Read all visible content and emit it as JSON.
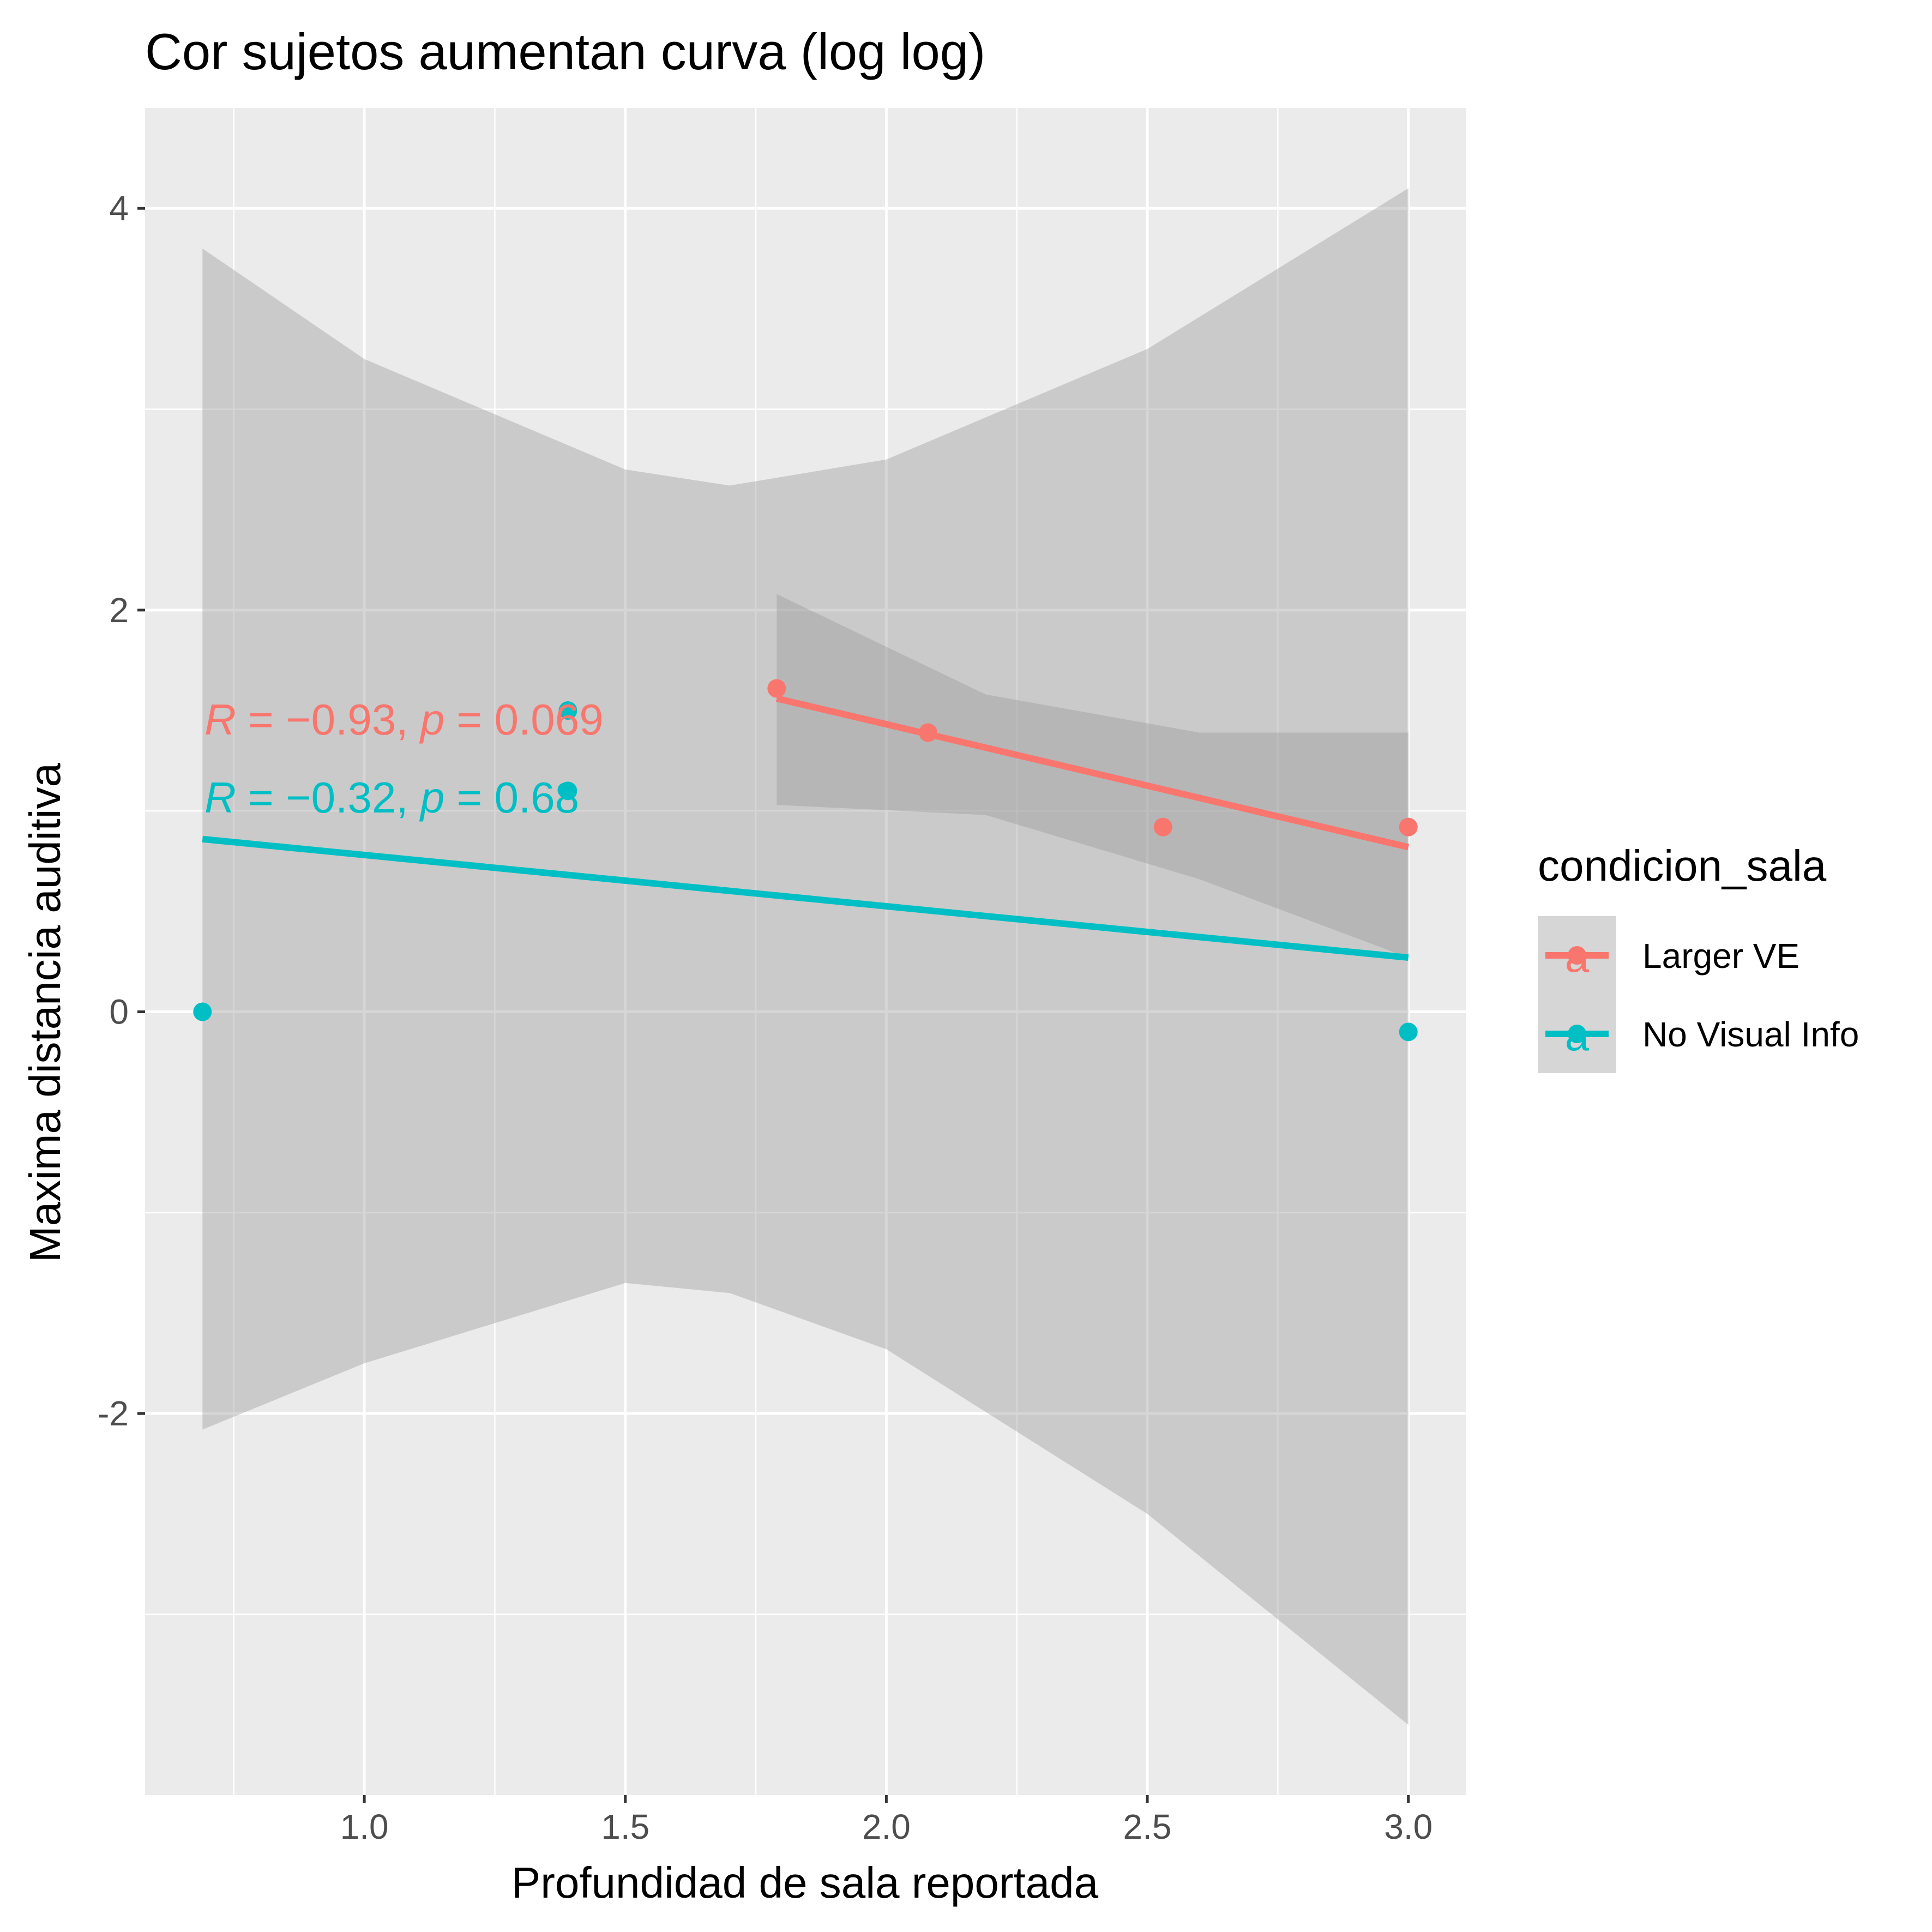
{
  "chart_data": {
    "type": "scatter",
    "title": "Cor sujetos aumentan curva (log log)",
    "xlabel": "Profundidad de sala reportada",
    "ylabel": "Maxima distancia auditiva",
    "xlim": [
      0.58,
      3.11
    ],
    "ylim": [
      -3.9,
      4.5
    ],
    "x_ticks": [
      1.0,
      1.5,
      2.0,
      2.5,
      3.0
    ],
    "x_tick_labels": [
      "1.0",
      "1.5",
      "2.0",
      "2.5",
      "3.0"
    ],
    "y_ticks": [
      -2,
      0,
      2,
      4
    ],
    "y_tick_labels": [
      "-2",
      "0",
      "2",
      "4"
    ],
    "grid": true,
    "legend": {
      "title": "condicion_sala",
      "position": "right",
      "key_glyph": "a"
    },
    "series": [
      {
        "name": "Larger VE",
        "color": "#F8766D",
        "points": [
          {
            "x": 1.79,
            "y": 1.61
          },
          {
            "x": 2.08,
            "y": 1.39
          },
          {
            "x": 2.53,
            "y": 0.92
          },
          {
            "x": 3.0,
            "y": 0.92
          }
        ],
        "fit": {
          "x": [
            1.79,
            3.0
          ],
          "y": [
            1.56,
            0.82
          ]
        },
        "ribbon": {
          "x": [
            1.79,
            2.19,
            2.6,
            3.0
          ],
          "lower": [
            1.03,
            0.98,
            0.66,
            0.27
          ],
          "upper": [
            2.08,
            1.58,
            1.39,
            1.39
          ]
        },
        "annotation": {
          "R": "−0.93",
          "p": "0.069"
        }
      },
      {
        "name": "No Visual Info",
        "color": "#00BFC4",
        "points": [
          {
            "x": 0.69,
            "y": 0.0
          },
          {
            "x": 1.39,
            "y": 1.5
          },
          {
            "x": 1.39,
            "y": 1.1
          },
          {
            "x": 3.0,
            "y": -0.1
          }
        ],
        "fit": {
          "x": [
            0.69,
            3.0
          ],
          "y": [
            0.86,
            0.27
          ]
        },
        "ribbon": {
          "x": [
            0.69,
            1.0,
            1.5,
            1.7,
            2.0,
            2.5,
            3.0
          ],
          "lower": [
            -2.08,
            -1.75,
            -1.35,
            -1.4,
            -1.68,
            -2.5,
            -3.55
          ],
          "upper": [
            3.8,
            3.25,
            2.7,
            2.62,
            2.75,
            3.3,
            4.1
          ]
        },
        "annotation": {
          "R": "−0.32",
          "p": "0.68"
        }
      }
    ]
  }
}
